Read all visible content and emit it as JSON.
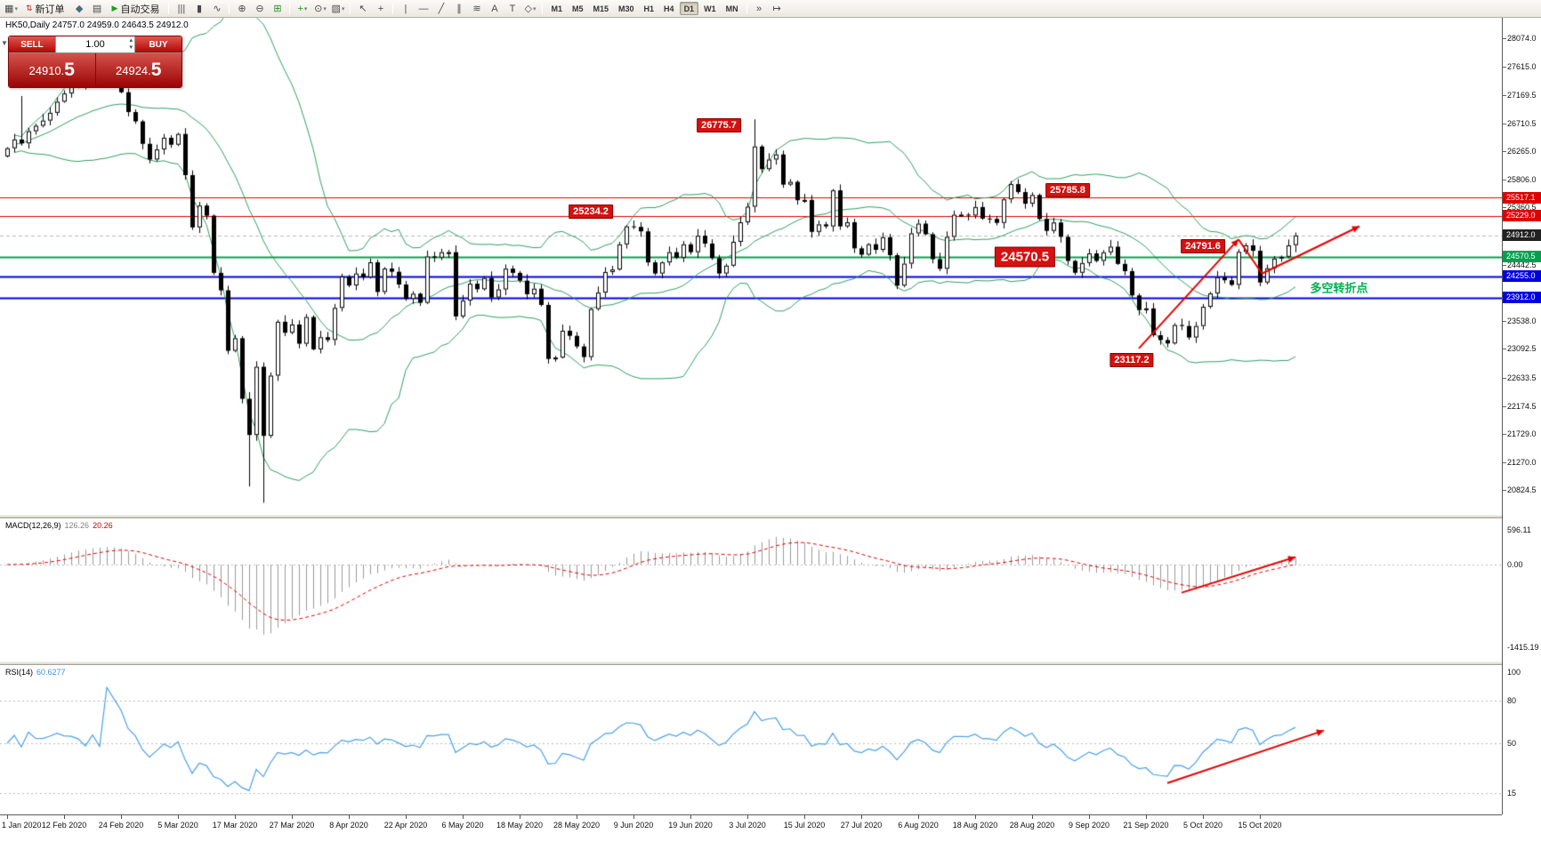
{
  "toolbar": {
    "active_timeframe": "D1",
    "items": [
      {
        "t": "icon",
        "id": "new-chart",
        "g": "▦",
        "caret": true
      },
      {
        "t": "btn",
        "id": "new-order",
        "label": "新订单",
        "g": "⇅",
        "gc": "#b02020"
      },
      {
        "t": "icon",
        "id": "market-watch",
        "g": "◆",
        "gc": "#4a6a7a"
      },
      {
        "t": "icon",
        "id": "data-window",
        "g": "▤"
      },
      {
        "t": "btn",
        "id": "autotrading",
        "label": "自动交易",
        "g": "▶",
        "gc": "#18a018"
      },
      {
        "t": "sep"
      },
      {
        "t": "icon",
        "id": "bar-chart",
        "g": "|||"
      },
      {
        "t": "icon",
        "id": "candlestick-chart",
        "g": "▮"
      },
      {
        "t": "icon",
        "id": "line-chart",
        "g": "∿"
      },
      {
        "t": "sep"
      },
      {
        "t": "icon",
        "id": "zoom-in",
        "g": "⊕"
      },
      {
        "t": "icon",
        "id": "zoom-out",
        "g": "⊖"
      },
      {
        "t": "icon",
        "id": "tile-windows",
        "g": "⊞",
        "gc": "#2a8a2a"
      },
      {
        "t": "sep"
      },
      {
        "t": "icon",
        "id": "indicators",
        "g": "+",
        "gc": "#18a018",
        "caret": true
      },
      {
        "t": "icon",
        "id": "periods",
        "g": "⊙",
        "caret": true
      },
      {
        "t": "icon",
        "id": "templates",
        "g": "▧",
        "caret": true
      },
      {
        "t": "sep"
      },
      {
        "t": "icon",
        "id": "cursor",
        "g": "↖"
      },
      {
        "t": "icon",
        "id": "crosshair",
        "g": "+"
      },
      {
        "t": "sep"
      },
      {
        "t": "icon",
        "id": "vertical-line",
        "g": "|"
      },
      {
        "t": "icon",
        "id": "horizontal-line",
        "g": "—"
      },
      {
        "t": "icon",
        "id": "trendline",
        "g": "╱"
      },
      {
        "t": "icon",
        "id": "equidistant-channel",
        "g": "∥"
      },
      {
        "t": "icon",
        "id": "fibonacci-retracement",
        "g": "≋"
      },
      {
        "t": "icon",
        "id": "text",
        "g": "A"
      },
      {
        "t": "icon",
        "id": "text-label",
        "g": "T"
      },
      {
        "t": "icon",
        "id": "arrows-objects",
        "g": "◇",
        "caret": true
      },
      {
        "t": "sep"
      },
      {
        "t": "tf",
        "label": "M1"
      },
      {
        "t": "tf",
        "label": "M5"
      },
      {
        "t": "tf",
        "label": "M15"
      },
      {
        "t": "tf",
        "label": "M30"
      },
      {
        "t": "tf",
        "label": "H1"
      },
      {
        "t": "tf",
        "label": "H4"
      },
      {
        "t": "tf",
        "label": "D1"
      },
      {
        "t": "tf",
        "label": "W1"
      },
      {
        "t": "tf",
        "label": "MN"
      },
      {
        "t": "sep"
      },
      {
        "t": "icon",
        "id": "auto-scroll",
        "g": "»"
      },
      {
        "t": "icon",
        "id": "chart-shift",
        "g": "↦"
      }
    ]
  },
  "symbol_line": "HK50,Daily 24757.0 24959.0 24643.5 24912.0",
  "order_panel": {
    "collapse_glyph": "▼",
    "sell_label": "SELL",
    "buy_label": "BUY",
    "volume": "1.00",
    "bid_main": "24910.",
    "bid_pips": "5",
    "ask_main": "24924.",
    "ask_pips": "5"
  },
  "icons": {
    "spinner_up": "▴",
    "spinner_down": "▾"
  },
  "indicator_labels": {
    "macd_name": "MACD(12,26,9)",
    "macd_main": "126.26",
    "macd_signal": "20.26",
    "rsi_name": "RSI(14)",
    "rsi_value": "60.6277"
  },
  "price_axis": {
    "ticks": [
      "28074.0",
      "27615.0",
      "27169.5",
      "26710.5",
      "26265.0",
      "25806.0",
      "25360.5",
      "24442.5",
      "23538.0",
      "23092.5",
      "22633.5",
      "22174.5",
      "21729.0",
      "21270.0",
      "20824.5"
    ],
    "markers": [
      {
        "label": "25517.1",
        "value": 25517.1,
        "bg": "#e00000"
      },
      {
        "label": "25229.0",
        "value": 25229.0,
        "bg": "#e00000"
      },
      {
        "label": "24912.0",
        "value": 24912.0,
        "bg": "#222222"
      },
      {
        "label": "24570.5",
        "value": 24570.5,
        "bg": "#00a050"
      },
      {
        "label": "24255.0",
        "value": 24255.0,
        "bg": "#0000e0"
      },
      {
        "label": "23912.0",
        "value": 23912.0,
        "bg": "#0000e0"
      }
    ]
  },
  "date_labels": [
    "1 Jan 2020",
    "12 Feb 2020",
    "24 Feb 2020",
    "5 Mar 2020",
    "17 Mar 2020",
    "27 Mar 2020",
    "8 Apr 2020",
    "22 Apr 2020",
    "6 May 2020",
    "18 May 2020",
    "28 May 2020",
    "9 Jun 2020",
    "19 Jun 2020",
    "3 Jul 2020",
    "15 Jul 2020",
    "27 Jul 2020",
    "6 Aug 2020",
    "18 Aug 2020",
    "28 Aug 2020",
    "9 Sep 2020",
    "21 Sep 2020",
    "5 Oct 2020",
    "15 Oct 2020"
  ],
  "hlines": [
    {
      "value": 25517.1,
      "color": "#e00000",
      "width": 1
    },
    {
      "value": 25229.0,
      "color": "#e00000",
      "width": 1
    },
    {
      "value": 24570.5,
      "color": "#00a050",
      "width": 2
    },
    {
      "value": 24255.0,
      "color": "#0000e0",
      "width": 2
    },
    {
      "value": 23912.0,
      "color": "#0000e0",
      "width": 2
    },
    {
      "value": 24912.0,
      "color": "#b8b8b8",
      "width": 1,
      "dash": true
    }
  ],
  "annotations": [
    {
      "name": "price-label-26775",
      "text": "26775.7",
      "idx": 100,
      "price": 26680
    },
    {
      "name": "price-label-25785",
      "text": "25785.8",
      "idx": 149,
      "price": 25640
    },
    {
      "name": "price-label-25234",
      "text": "25234.2",
      "idx": 82,
      "price": 25300
    },
    {
      "name": "price-label-24570",
      "text": "24570.5",
      "idx": 143,
      "price": 24570,
      "cls": "lg"
    },
    {
      "name": "price-label-24791",
      "text": "24791.6",
      "idx": 168,
      "price": 24740
    },
    {
      "name": "price-label-23117",
      "text": "23117.2",
      "idx": 158,
      "price": 22920
    },
    {
      "name": "note-turning-point",
      "text": "多空转折点",
      "x": 1505,
      "price": 24080,
      "cls": "plain",
      "color": "#00b050"
    }
  ],
  "arrows": {
    "main": [
      {
        "from": [
          159,
          23100
        ],
        "to": [
          173,
          24850
        ],
        "head": true
      },
      {
        "from": [
          173,
          24850
        ],
        "to": [
          176.3,
          24300
        ],
        "head": false
      },
      {
        "from": [
          176.3,
          24300
        ],
        "to": [
          190,
          25060
        ],
        "head": true
      }
    ],
    "macd": [
      {
        "from": [
          165,
          -480
        ],
        "to": [
          181,
          130
        ],
        "head": true
      }
    ],
    "rsi": [
      {
        "from": [
          163,
          22
        ],
        "to": [
          185,
          59
        ],
        "head": true
      }
    ]
  },
  "colors": {
    "accent_red": "#e60000",
    "bollinger": "#2f9e63",
    "candle_up": "#ffffff",
    "candle_down": "#000000",
    "candle_outline": "#000000",
    "macd_hist": "#9a9a9a",
    "macd_signal": "#e00000",
    "rsi_line": "#4aa0e8",
    "note_green": "#00b050",
    "level_dots": "#b8b8b8"
  },
  "chart_data": {
    "type": "candlestick",
    "symbol": "HK50",
    "timeframe": "Daily",
    "ohlc_current": {
      "open": 24757.0,
      "high": 24959.0,
      "low": 24643.5,
      "close": 24912.0
    },
    "main": {
      "y_range": [
        20560,
        28290
      ],
      "first_open": 26180,
      "closes": [
        26312,
        26452,
        26390,
        26585,
        26672,
        26755,
        26880,
        27058,
        27190,
        27312,
        27388,
        27342,
        27488,
        27432,
        27505,
        27368,
        27210,
        26892,
        26742,
        26382,
        26130,
        26292,
        26480,
        26368,
        26540,
        25880,
        25042,
        25392,
        25230,
        24312,
        24032,
        23062,
        23264,
        22292,
        21712,
        22806,
        21698,
        22664,
        23528,
        23352,
        23484,
        23176,
        23604,
        23086,
        23280,
        23236,
        23750,
        24254,
        24110,
        24302,
        24240,
        24482,
        24006,
        24382,
        24330,
        24126,
        23894,
        23978,
        23832,
        24576,
        24556,
        24644,
        24644,
        23614,
        23868,
        24138,
        24050,
        24230,
        23918,
        24046,
        24380,
        24312,
        24188,
        23970,
        24058,
        23798,
        22932,
        22954,
        23384,
        23302,
        23132,
        22962,
        23732,
        23996,
        24326,
        24366,
        24770,
        25058,
        25050,
        24978,
        24480,
        24302,
        24480,
        24644,
        24554,
        24770,
        24644,
        24908,
        24782,
        24550,
        24302,
        24428,
        24810,
        25124,
        25374,
        26340,
        25976,
        26130,
        26212,
        25728,
        25772,
        25478,
        25482,
        24970,
        25090,
        25058,
        25636,
        25058,
        25124,
        24706,
        24604,
        24772,
        24682,
        24884,
        24596,
        24108,
        24460,
        24946,
        25102,
        24932,
        24532,
        24378,
        24890,
        25244,
        25246,
        25232,
        25368,
        25184,
        25178,
        25114,
        25492,
        25736,
        25608,
        25422,
        25562,
        25177,
        24986,
        25120,
        24890,
        24504,
        24314,
        24470,
        24624,
        24504,
        24642,
        24732,
        24456,
        24340,
        23950,
        23716,
        23742,
        23312,
        23235,
        23180,
        23476,
        23460,
        23276,
        23460,
        23768,
        23982,
        24242,
        24194,
        24120,
        24650,
        24754,
        24667,
        24158,
        24386,
        24542,
        24570,
        24754,
        24912
      ],
      "overrides": {
        "2": {
          "high": 27150
        },
        "14": {
          "high": 27560
        },
        "34": {
          "low": 20886
        },
        "36": {
          "low": 20624
        },
        "105": {
          "high": 26775.7
        },
        "141": {
          "high": 25785.8
        },
        "163": {
          "low": 23117.2
        },
        "174": {
          "high": 24791.6
        },
        "181": {
          "open": 24757.0,
          "high": 24959.0,
          "low": 24643.5,
          "close": 24912.0
        }
      },
      "bollinger": {
        "period": 20,
        "deviation": 2
      }
    },
    "macd": {
      "params": "12,26,9",
      "y_range": [
        -1550,
        700
      ],
      "axis": [
        {
          "label": "596.11",
          "value": 596.11
        },
        {
          "label": "0.00",
          "value": 0
        },
        {
          "label": "-1415.19",
          "value": -1415.19
        }
      ]
    },
    "rsi": {
      "params": "14",
      "y_range": [
        0,
        105
      ],
      "levels": [
        80,
        50,
        15
      ],
      "axis": [
        {
          "label": "100",
          "value": 100
        },
        {
          "label": "80",
          "value": 80
        },
        {
          "label": "50",
          "value": 50
        },
        {
          "label": "15",
          "value": 15
        }
      ]
    }
  }
}
